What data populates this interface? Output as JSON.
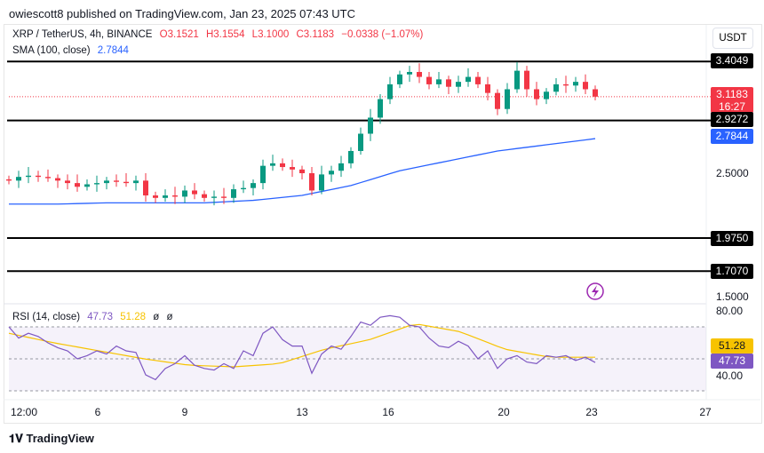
{
  "header": {
    "published": "owiescott8 published on TradingView.com, Jan 23, 2025 07:43 UTC"
  },
  "legend": {
    "symbol": "XRP / TetherUS, 4h, BINANCE",
    "o": "O3.1521",
    "h": "H3.1554",
    "l": "L3.1000",
    "c": "C3.1183",
    "change": "−0.0338 (−1.07%)",
    "sma_label": "SMA (100, close)",
    "sma_value": "2.7844"
  },
  "rsi_legend": {
    "label": "RSI (14, close)",
    "value": "47.73",
    "ma": "51.28",
    "x1": "ø",
    "x2": "ø"
  },
  "currency": "USDT",
  "price_axis": {
    "ticks": [
      "2.5000",
      "1.5000"
    ],
    "current": "3.1183",
    "countdown": "16:27",
    "sma": "2.7844"
  },
  "levels": [
    "3.4049",
    "2.9272",
    "1.9750",
    "1.7070"
  ],
  "rsi_axis": {
    "ticks": [
      "80.00",
      "40.00"
    ],
    "ma": "51.28",
    "value": "47.73"
  },
  "time_axis": [
    "12:00",
    "6",
    "9",
    "13",
    "16",
    "20",
    "23",
    "27"
  ],
  "footer": {
    "brand": "TradingView"
  },
  "colors": {
    "up": "#089981",
    "down": "#f23645",
    "sma": "#2962ff",
    "rsi": "#7e57c2",
    "rsi_ma": "#f7c300",
    "level": "#000000"
  },
  "chart_data": [
    {
      "type": "candlestick",
      "title": "XRP / TetherUS, 4h, BINANCE",
      "ylim": [
        1.45,
        3.55
      ],
      "close": [
        2.44,
        2.47,
        2.48,
        2.47,
        2.46,
        2.44,
        2.42,
        2.39,
        2.41,
        2.42,
        2.44,
        2.43,
        2.42,
        2.44,
        2.32,
        2.3,
        2.32,
        2.31,
        2.36,
        2.33,
        2.3,
        2.31,
        2.3,
        2.37,
        2.38,
        2.42,
        2.56,
        2.58,
        2.55,
        2.53,
        2.5,
        2.36,
        2.49,
        2.52,
        2.58,
        2.68,
        2.82,
        2.95,
        3.1,
        3.22,
        3.3,
        3.32,
        3.28,
        3.22,
        3.26,
        3.2,
        3.24,
        3.28,
        3.22,
        3.15,
        3.02,
        3.18,
        3.33,
        3.18,
        3.1,
        3.16,
        3.22,
        3.21,
        3.24,
        3.18,
        3.12
      ],
      "sma": [
        2.25,
        2.25,
        2.26,
        2.26,
        2.26,
        2.28,
        2.32,
        2.4,
        2.52,
        2.6,
        2.68,
        2.73,
        2.78
      ],
      "levels": [
        3.4049,
        2.9272,
        1.975,
        1.707
      ]
    },
    {
      "type": "line",
      "title": "RSI (14, close)",
      "ylim": [
        20,
        90
      ],
      "bands": [
        30,
        50,
        70
      ],
      "rsi": [
        70,
        63,
        66,
        64,
        60,
        57,
        55,
        50,
        52,
        55,
        53,
        58,
        55,
        54,
        40,
        37,
        44,
        47,
        52,
        46,
        44,
        43,
        47,
        44,
        55,
        52,
        66,
        70,
        62,
        58,
        58,
        41,
        53,
        58,
        56,
        64,
        73,
        71,
        76,
        77,
        76,
        71,
        70,
        63,
        58,
        57,
        61,
        58,
        50,
        55,
        44,
        50,
        52,
        48,
        47,
        52,
        51,
        52,
        49,
        51,
        47.73
      ],
      "rsi_ma": [
        66,
        60,
        55,
        50,
        46,
        45,
        47,
        56,
        62,
        72,
        67,
        56,
        51,
        51
      ]
    }
  ]
}
